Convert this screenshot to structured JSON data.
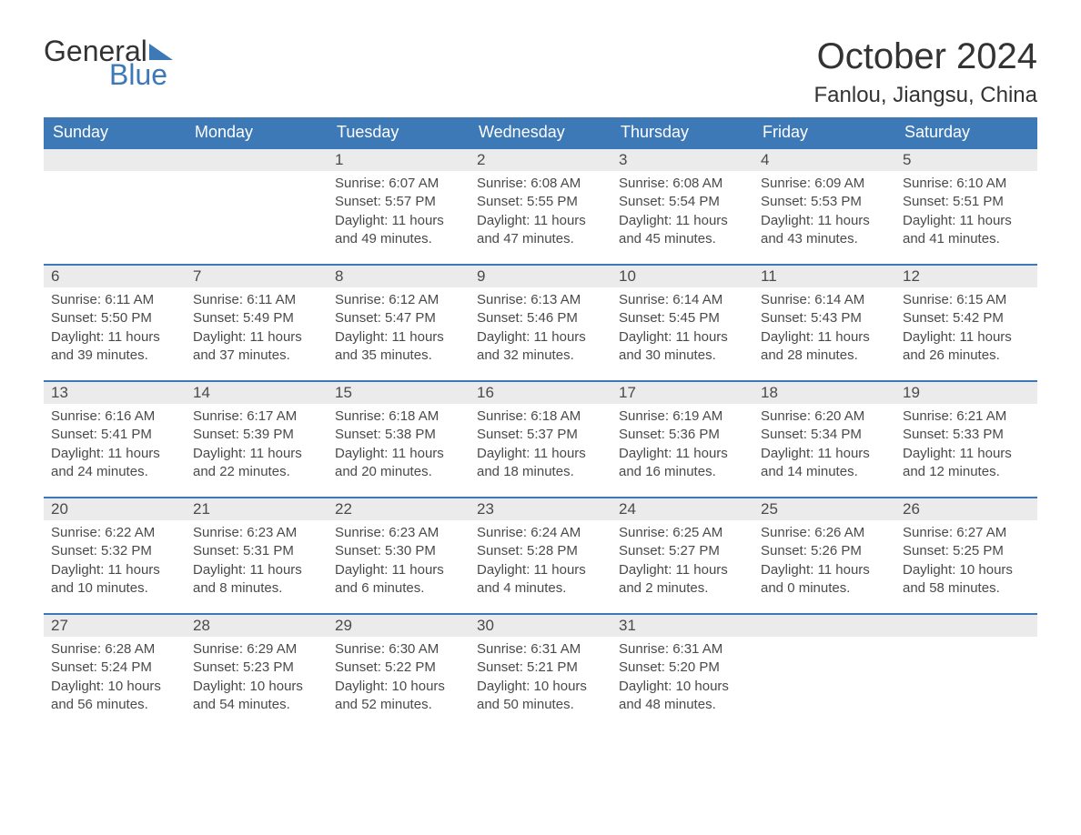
{
  "brand": {
    "word1": "General",
    "word2": "Blue"
  },
  "title": "October 2024",
  "location": "Fanlou, Jiangsu, China",
  "colors": {
    "header_bg": "#3d78b7",
    "header_text": "#ffffff",
    "daynum_bg": "#ebebeb",
    "body_text": "#4a4a4a",
    "page_bg": "#ffffff",
    "rule": "#3d78b7"
  },
  "days_of_week": [
    "Sunday",
    "Monday",
    "Tuesday",
    "Wednesday",
    "Thursday",
    "Friday",
    "Saturday"
  ],
  "weeks": [
    [
      null,
      null,
      {
        "n": "1",
        "sunrise": "6:07 AM",
        "sunset": "5:57 PM",
        "daylight": "11 hours and 49 minutes."
      },
      {
        "n": "2",
        "sunrise": "6:08 AM",
        "sunset": "5:55 PM",
        "daylight": "11 hours and 47 minutes."
      },
      {
        "n": "3",
        "sunrise": "6:08 AM",
        "sunset": "5:54 PM",
        "daylight": "11 hours and 45 minutes."
      },
      {
        "n": "4",
        "sunrise": "6:09 AM",
        "sunset": "5:53 PM",
        "daylight": "11 hours and 43 minutes."
      },
      {
        "n": "5",
        "sunrise": "6:10 AM",
        "sunset": "5:51 PM",
        "daylight": "11 hours and 41 minutes."
      }
    ],
    [
      {
        "n": "6",
        "sunrise": "6:11 AM",
        "sunset": "5:50 PM",
        "daylight": "11 hours and 39 minutes."
      },
      {
        "n": "7",
        "sunrise": "6:11 AM",
        "sunset": "5:49 PM",
        "daylight": "11 hours and 37 minutes."
      },
      {
        "n": "8",
        "sunrise": "6:12 AM",
        "sunset": "5:47 PM",
        "daylight": "11 hours and 35 minutes."
      },
      {
        "n": "9",
        "sunrise": "6:13 AM",
        "sunset": "5:46 PM",
        "daylight": "11 hours and 32 minutes."
      },
      {
        "n": "10",
        "sunrise": "6:14 AM",
        "sunset": "5:45 PM",
        "daylight": "11 hours and 30 minutes."
      },
      {
        "n": "11",
        "sunrise": "6:14 AM",
        "sunset": "5:43 PM",
        "daylight": "11 hours and 28 minutes."
      },
      {
        "n": "12",
        "sunrise": "6:15 AM",
        "sunset": "5:42 PM",
        "daylight": "11 hours and 26 minutes."
      }
    ],
    [
      {
        "n": "13",
        "sunrise": "6:16 AM",
        "sunset": "5:41 PM",
        "daylight": "11 hours and 24 minutes."
      },
      {
        "n": "14",
        "sunrise": "6:17 AM",
        "sunset": "5:39 PM",
        "daylight": "11 hours and 22 minutes."
      },
      {
        "n": "15",
        "sunrise": "6:18 AM",
        "sunset": "5:38 PM",
        "daylight": "11 hours and 20 minutes."
      },
      {
        "n": "16",
        "sunrise": "6:18 AM",
        "sunset": "5:37 PM",
        "daylight": "11 hours and 18 minutes."
      },
      {
        "n": "17",
        "sunrise": "6:19 AM",
        "sunset": "5:36 PM",
        "daylight": "11 hours and 16 minutes."
      },
      {
        "n": "18",
        "sunrise": "6:20 AM",
        "sunset": "5:34 PM",
        "daylight": "11 hours and 14 minutes."
      },
      {
        "n": "19",
        "sunrise": "6:21 AM",
        "sunset": "5:33 PM",
        "daylight": "11 hours and 12 minutes."
      }
    ],
    [
      {
        "n": "20",
        "sunrise": "6:22 AM",
        "sunset": "5:32 PM",
        "daylight": "11 hours and 10 minutes."
      },
      {
        "n": "21",
        "sunrise": "6:23 AM",
        "sunset": "5:31 PM",
        "daylight": "11 hours and 8 minutes."
      },
      {
        "n": "22",
        "sunrise": "6:23 AM",
        "sunset": "5:30 PM",
        "daylight": "11 hours and 6 minutes."
      },
      {
        "n": "23",
        "sunrise": "6:24 AM",
        "sunset": "5:28 PM",
        "daylight": "11 hours and 4 minutes."
      },
      {
        "n": "24",
        "sunrise": "6:25 AM",
        "sunset": "5:27 PM",
        "daylight": "11 hours and 2 minutes."
      },
      {
        "n": "25",
        "sunrise": "6:26 AM",
        "sunset": "5:26 PM",
        "daylight": "11 hours and 0 minutes."
      },
      {
        "n": "26",
        "sunrise": "6:27 AM",
        "sunset": "5:25 PM",
        "daylight": "10 hours and 58 minutes."
      }
    ],
    [
      {
        "n": "27",
        "sunrise": "6:28 AM",
        "sunset": "5:24 PM",
        "daylight": "10 hours and 56 minutes."
      },
      {
        "n": "28",
        "sunrise": "6:29 AM",
        "sunset": "5:23 PM",
        "daylight": "10 hours and 54 minutes."
      },
      {
        "n": "29",
        "sunrise": "6:30 AM",
        "sunset": "5:22 PM",
        "daylight": "10 hours and 52 minutes."
      },
      {
        "n": "30",
        "sunrise": "6:31 AM",
        "sunset": "5:21 PM",
        "daylight": "10 hours and 50 minutes."
      },
      {
        "n": "31",
        "sunrise": "6:31 AM",
        "sunset": "5:20 PM",
        "daylight": "10 hours and 48 minutes."
      },
      null,
      null
    ]
  ],
  "labels": {
    "sunrise_prefix": "Sunrise: ",
    "sunset_prefix": "Sunset: ",
    "daylight_prefix": "Daylight: "
  }
}
